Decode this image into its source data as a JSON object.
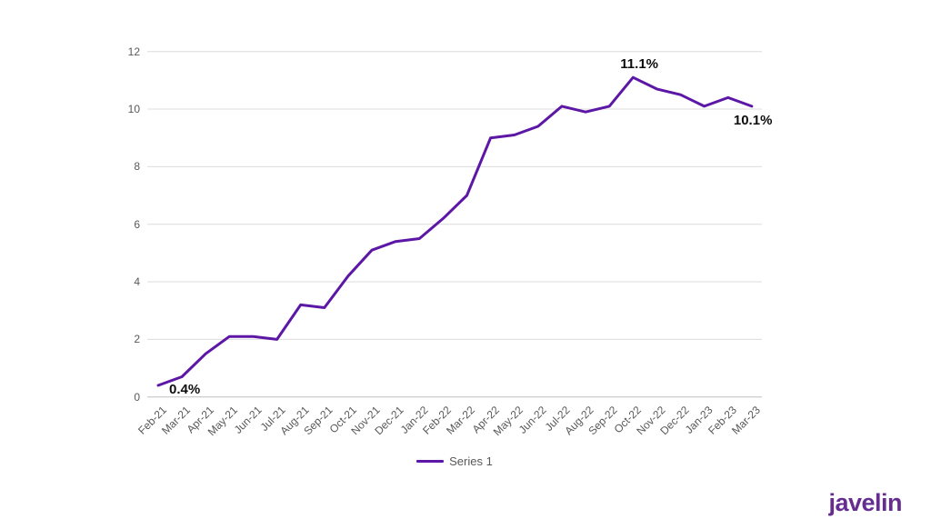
{
  "brand": {
    "logo_text": "javelin"
  },
  "colors": {
    "line": "#5C17A6",
    "grid": "#DCDCDC",
    "axis": "#BFBFBF",
    "tick_text": "#595959",
    "annotation_text": "#0D0D0D",
    "brand": "#662D91"
  },
  "chart_data": {
    "type": "line",
    "title": "",
    "xlabel": "",
    "ylabel": "",
    "categories": [
      "Feb-21",
      "Mar-21",
      "Apr-21",
      "May-21",
      "Jun-21",
      "Jul-21",
      "Aug-21",
      "Sep-21",
      "Oct-21",
      "Nov-21",
      "Dec-21",
      "Jan-22",
      "Feb-22",
      "Mar-22",
      "Apr-22",
      "May-22",
      "Jun-22",
      "Jul-22",
      "Aug-22",
      "Sep-22",
      "Oct-22",
      "Nov-22",
      "Dec-22",
      "Jan-23",
      "Feb-23",
      "Mar-23"
    ],
    "series": [
      {
        "name": "Series 1",
        "values": [
          0.4,
          0.7,
          1.5,
          2.1,
          2.1,
          2.0,
          3.2,
          3.1,
          4.2,
          5.1,
          5.4,
          5.5,
          6.2,
          7.0,
          9.0,
          9.1,
          9.4,
          10.1,
          9.9,
          10.1,
          11.1,
          10.7,
          10.5,
          10.1,
          10.4,
          10.1
        ]
      }
    ],
    "ylim": [
      0,
      12
    ],
    "yticks": [
      0,
      2,
      4,
      6,
      8,
      10,
      12
    ],
    "grid": "horizontal",
    "legend_position": "bottom",
    "annotations": [
      {
        "index": 0,
        "label": "0.4%",
        "placement": "below-right"
      },
      {
        "index": 20,
        "label": "11.1%",
        "placement": "above"
      },
      {
        "index": 25,
        "label": "10.1%",
        "placement": "below"
      }
    ]
  }
}
